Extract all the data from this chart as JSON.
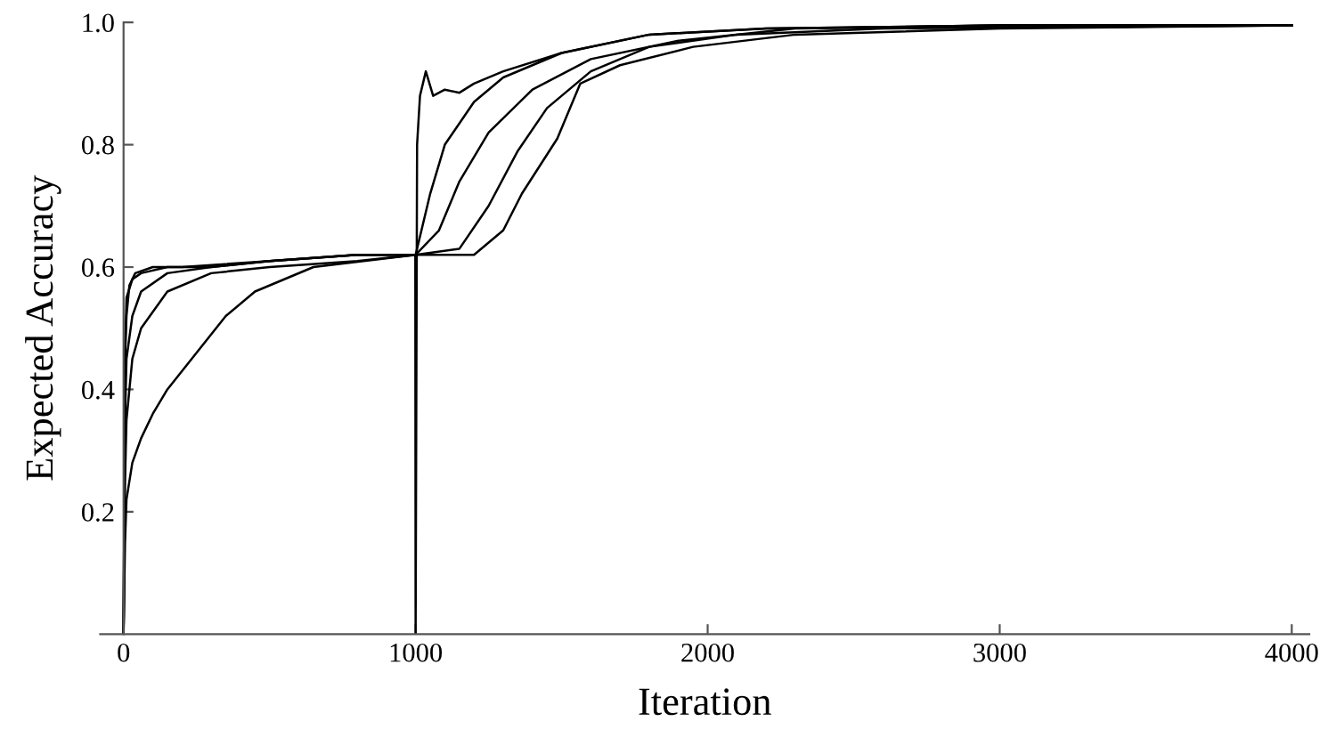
{
  "chart_data": {
    "type": "line",
    "xlabel": "Iteration",
    "ylabel": "Expected Accuracy",
    "xlim": [
      -80,
      4060
    ],
    "ylim": [
      0,
      1.0
    ],
    "xticks": [
      0,
      1000,
      2000,
      3000,
      4000
    ],
    "yticks": [
      0.2,
      0.4,
      0.6,
      0.8,
      {
        "value": 1,
        "label": "1.0"
      }
    ],
    "grid": false,
    "marker": "none",
    "line_style": "solid",
    "series": [
      {
        "color": "#000000",
        "x": [
          0,
          5,
          10,
          30,
          60,
          150,
          300,
          500,
          800,
          1000,
          1050,
          1100,
          1200,
          1300,
          1500,
          1800,
          2200,
          3000,
          4000
        ],
        "values": [
          0,
          0.45,
          0.55,
          0.58,
          0.59,
          0.6,
          0.6,
          0.61,
          0.62,
          0.62,
          0.72,
          0.8,
          0.87,
          0.91,
          0.95,
          0.98,
          0.99,
          0.995,
          0.995
        ]
      },
      {
        "color": "#000000",
        "x": [
          0,
          5,
          10,
          30,
          60,
          150,
          300,
          500,
          800,
          1000,
          1080,
          1150,
          1250,
          1400,
          1600,
          1900,
          2300,
          3000,
          4000
        ],
        "values": [
          0,
          0.35,
          0.45,
          0.52,
          0.56,
          0.59,
          0.6,
          0.61,
          0.62,
          0.62,
          0.66,
          0.74,
          0.82,
          0.89,
          0.94,
          0.97,
          0.99,
          0.995,
          0.995
        ]
      },
      {
        "color": "#000000",
        "x": [
          0,
          5,
          10,
          30,
          60,
          150,
          300,
          500,
          800,
          1000,
          1150,
          1250,
          1350,
          1450,
          1600,
          1800,
          2100,
          2600,
          4000
        ],
        "values": [
          0,
          0.25,
          0.35,
          0.45,
          0.5,
          0.56,
          0.59,
          0.6,
          0.61,
          0.62,
          0.63,
          0.7,
          0.79,
          0.86,
          0.92,
          0.96,
          0.98,
          0.99,
          0.995
        ]
      },
      {
        "color": "#000000",
        "x": [
          0,
          5,
          10,
          30,
          60,
          100,
          150,
          250,
          350,
          450,
          650,
          1000,
          1200,
          1300,
          1364,
          1485,
          1564,
          1700,
          1950,
          2300,
          3000,
          4000
        ],
        "values": [
          0,
          0.15,
          0.22,
          0.28,
          0.32,
          0.36,
          0.4,
          0.46,
          0.52,
          0.56,
          0.6,
          0.62,
          0.62,
          0.66,
          0.72,
          0.81,
          0.9,
          0.93,
          0.96,
          0.98,
          0.99,
          0.995
        ]
      },
      {
        "color": "#000000",
        "x": [
          0,
          5,
          10,
          20,
          40,
          100,
          200,
          500,
          800,
          999,
          1000,
          1005,
          1015,
          1035,
          1060,
          1100,
          1150,
          1200,
          1300,
          1500,
          1800,
          2200,
          3000,
          4000
        ],
        "values": [
          0,
          0.45,
          0.52,
          0.57,
          0.59,
          0.6,
          0.6,
          0.61,
          0.62,
          0.62,
          0,
          0.8,
          0.88,
          0.92,
          0.88,
          0.89,
          0.885,
          0.9,
          0.92,
          0.95,
          0.98,
          0.99,
          0.995,
          0.995
        ]
      }
    ]
  }
}
